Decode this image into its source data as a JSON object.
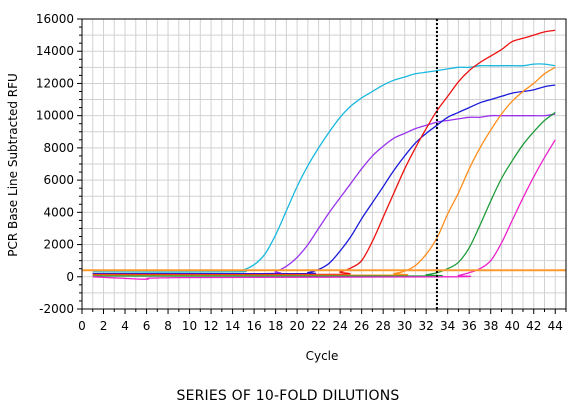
{
  "caption": "SERIES OF 10-FOLD DILUTIONS",
  "chart_data": {
    "type": "line",
    "xlabel": "Cycle",
    "ylabel": "PCR Base Line Subtracted RFU",
    "xlim": [
      0,
      45
    ],
    "ylim": [
      -2000,
      16000
    ],
    "x_ticks": [
      0,
      2,
      4,
      6,
      8,
      10,
      12,
      14,
      16,
      18,
      20,
      22,
      24,
      26,
      28,
      30,
      32,
      34,
      36,
      38,
      40,
      42,
      44
    ],
    "y_ticks": [
      -2000,
      0,
      2000,
      4000,
      6000,
      8000,
      10000,
      12000,
      14000,
      16000
    ],
    "grid": true,
    "threshold_cycle": 33,
    "series": [
      {
        "color": "#19b8df",
        "points": [
          [
            1,
            300
          ],
          [
            14,
            300
          ],
          [
            15,
            420
          ],
          [
            16,
            750
          ],
          [
            17,
            1400
          ],
          [
            18,
            2600
          ],
          [
            19,
            4100
          ],
          [
            20,
            5600
          ],
          [
            21,
            6900
          ],
          [
            22,
            8000
          ],
          [
            23,
            9000
          ],
          [
            24,
            9900
          ],
          [
            25,
            10600
          ],
          [
            26,
            11100
          ],
          [
            27,
            11500
          ],
          [
            28,
            11900
          ],
          [
            29,
            12200
          ],
          [
            30,
            12400
          ],
          [
            31,
            12600
          ],
          [
            32,
            12700
          ],
          [
            33,
            12800
          ],
          [
            34,
            12900
          ],
          [
            35,
            13000
          ],
          [
            36,
            13000
          ],
          [
            37,
            13100
          ],
          [
            38,
            13100
          ],
          [
            39,
            13100
          ],
          [
            40,
            13100
          ],
          [
            41,
            13100
          ],
          [
            42,
            13200
          ],
          [
            43,
            13200
          ],
          [
            44,
            13100
          ]
        ]
      },
      {
        "color": "#9933ee",
        "points": [
          [
            1,
            200
          ],
          [
            17,
            200
          ],
          [
            18,
            320
          ],
          [
            19,
            650
          ],
          [
            20,
            1200
          ],
          [
            21,
            2000
          ],
          [
            22,
            3000
          ],
          [
            23,
            4000
          ],
          [
            24,
            4900
          ],
          [
            25,
            5800
          ],
          [
            26,
            6700
          ],
          [
            27,
            7500
          ],
          [
            28,
            8100
          ],
          [
            29,
            8600
          ],
          [
            30,
            8900
          ],
          [
            31,
            9200
          ],
          [
            32,
            9400
          ],
          [
            33,
            9600
          ],
          [
            34,
            9700
          ],
          [
            35,
            9800
          ],
          [
            36,
            9900
          ],
          [
            37,
            9900
          ],
          [
            38,
            10000
          ],
          [
            39,
            10000
          ],
          [
            40,
            10000
          ],
          [
            41,
            10000
          ],
          [
            42,
            10000
          ],
          [
            43,
            10000
          ],
          [
            44,
            10100
          ]
        ]
      },
      {
        "color": "#1a1add",
        "points": [
          [
            1,
            200
          ],
          [
            20,
            200
          ],
          [
            21,
            260
          ],
          [
            22,
            450
          ],
          [
            23,
            850
          ],
          [
            24,
            1600
          ],
          [
            25,
            2500
          ],
          [
            26,
            3600
          ],
          [
            27,
            4600
          ],
          [
            28,
            5600
          ],
          [
            29,
            6600
          ],
          [
            30,
            7500
          ],
          [
            31,
            8300
          ],
          [
            32,
            8900
          ],
          [
            33,
            9400
          ],
          [
            34,
            9900
          ],
          [
            35,
            10200
          ],
          [
            36,
            10500
          ],
          [
            37,
            10800
          ],
          [
            38,
            11000
          ],
          [
            39,
            11200
          ],
          [
            40,
            11400
          ],
          [
            41,
            11500
          ],
          [
            42,
            11600
          ],
          [
            43,
            11800
          ],
          [
            44,
            11900
          ]
        ]
      },
      {
        "color": "#ee1111",
        "points": [
          [
            1,
            150
          ],
          [
            23,
            150
          ],
          [
            24,
            300
          ],
          [
            25,
            550
          ],
          [
            26,
            1000
          ],
          [
            27,
            2200
          ],
          [
            28,
            3700
          ],
          [
            29,
            5200
          ],
          [
            30,
            6700
          ],
          [
            31,
            8000
          ],
          [
            32,
            9200
          ],
          [
            33,
            10300
          ],
          [
            34,
            11200
          ],
          [
            35,
            12100
          ],
          [
            36,
            12800
          ],
          [
            37,
            13300
          ],
          [
            38,
            13700
          ],
          [
            39,
            14100
          ],
          [
            40,
            14600
          ],
          [
            41,
            14800
          ],
          [
            42,
            15000
          ],
          [
            43,
            15200
          ],
          [
            44,
            15300
          ]
        ]
      },
      {
        "color": "#ff8c1a",
        "points": [
          [
            1,
            100
          ],
          [
            28,
            100
          ],
          [
            29,
            200
          ],
          [
            30,
            350
          ],
          [
            31,
            700
          ],
          [
            32,
            1400
          ],
          [
            33,
            2400
          ],
          [
            34,
            3900
          ],
          [
            35,
            5200
          ],
          [
            36,
            6700
          ],
          [
            37,
            8000
          ],
          [
            38,
            9100
          ],
          [
            39,
            10100
          ],
          [
            40,
            10900
          ],
          [
            41,
            11500
          ],
          [
            42,
            12000
          ],
          [
            43,
            12600
          ],
          [
            44,
            13000
          ]
        ]
      },
      {
        "color": "#1f9b3a",
        "points": [
          [
            1,
            50
          ],
          [
            31,
            50
          ],
          [
            32,
            120
          ],
          [
            33,
            250
          ],
          [
            34,
            500
          ],
          [
            35,
            900
          ],
          [
            36,
            1800
          ],
          [
            37,
            3200
          ],
          [
            38,
            4700
          ],
          [
            39,
            6100
          ],
          [
            40,
            7200
          ],
          [
            41,
            8200
          ],
          [
            42,
            9000
          ],
          [
            43,
            9700
          ],
          [
            44,
            10200
          ]
        ]
      },
      {
        "color": "#ee22cc",
        "points": [
          [
            1,
            0
          ],
          [
            4,
            -100
          ],
          [
            6,
            -150
          ],
          [
            9,
            -50
          ],
          [
            34,
            0
          ],
          [
            35,
            80
          ],
          [
            36,
            250
          ],
          [
            37,
            500
          ],
          [
            38,
            1000
          ],
          [
            39,
            2100
          ],
          [
            40,
            3500
          ],
          [
            41,
            4900
          ],
          [
            42,
            6200
          ],
          [
            43,
            7400
          ],
          [
            44,
            8500
          ]
        ]
      },
      {
        "color": "#ff9a2e",
        "points": [
          [
            0,
            400
          ],
          [
            45,
            400
          ]
        ]
      }
    ]
  }
}
